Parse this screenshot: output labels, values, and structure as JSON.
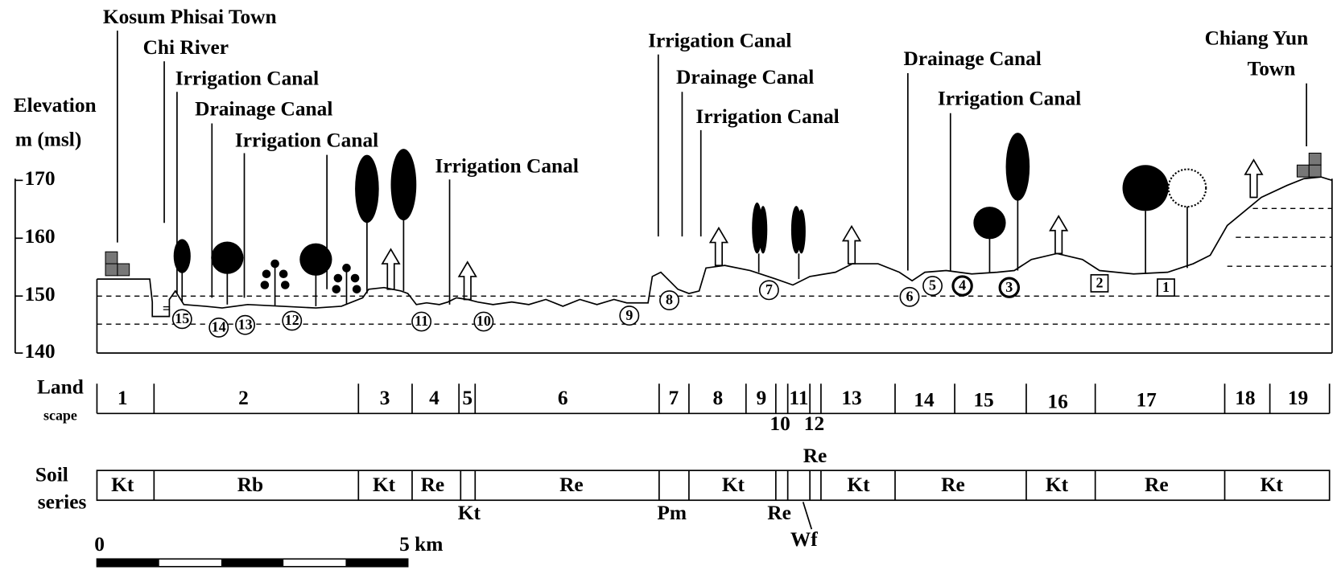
{
  "places": [
    "Kosum Phisai Town",
    "Chi River",
    "Irrigation Canal",
    "Drainage Canal",
    "Irrigation Canal",
    "Irrigation Canal",
    "Irrigation Canal",
    "Drainage Canal",
    "Irrigation Canal",
    "Drainage Canal",
    "Irrigation Canal",
    "Chiang Yun",
    "Town"
  ],
  "elevation": {
    "label": "Elevation",
    "unit": "m (msl)",
    "ticks": [
      "170",
      "160",
      "150",
      "140"
    ]
  },
  "sites": [
    "15",
    "14",
    "13",
    "12",
    "11",
    "10",
    "9",
    "8",
    "7",
    "6",
    "5",
    "4",
    "3",
    "2",
    "1"
  ],
  "landscape": {
    "label": [
      "Land",
      "scape"
    ],
    "units": [
      "1",
      "2",
      "3",
      "4",
      "5",
      "6",
      "7",
      "8",
      "9",
      "11",
      "13",
      "14",
      "15",
      "16",
      "17",
      "18",
      "19",
      "10",
      "12"
    ]
  },
  "soil": {
    "label": [
      "Soil",
      "series"
    ],
    "units": [
      "Kt",
      "Rb",
      "Kt",
      "Re",
      "Re",
      "Kt",
      "Kt",
      "Re",
      "Kt",
      "Re",
      "Kt",
      "Kt",
      "Pm",
      "Re",
      "Wf",
      "Re"
    ]
  },
  "scale": {
    "start": "0",
    "end": "5 km"
  }
}
